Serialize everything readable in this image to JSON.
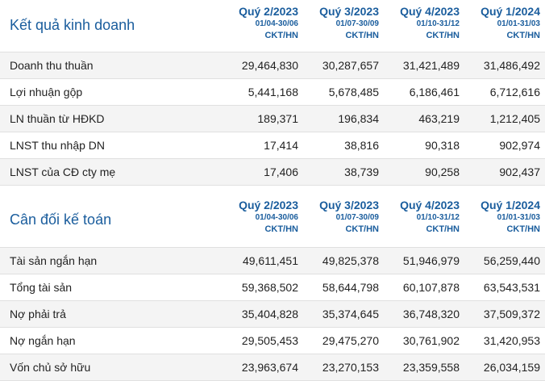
{
  "income": {
    "title": "Kết quả kinh doanh",
    "quarters": [
      {
        "label": "Quý 2/2023",
        "dates": "01/04-30/06",
        "audit": "CKT/HN"
      },
      {
        "label": "Quý 3/2023",
        "dates": "01/07-30/09",
        "audit": "CKT/HN"
      },
      {
        "label": "Quý 4/2023",
        "dates": "01/10-31/12",
        "audit": "CKT/HN"
      },
      {
        "label": "Quý 1/2024",
        "dates": "01/01-31/03",
        "audit": "CKT/HN"
      }
    ],
    "rows": [
      {
        "label": "Doanh thu thuần",
        "values": [
          "29,464,830",
          "30,287,657",
          "31,421,489",
          "31,486,492"
        ]
      },
      {
        "label": "Lợi nhuận gộp",
        "values": [
          "5,441,168",
          "5,678,485",
          "6,186,461",
          "6,712,616"
        ]
      },
      {
        "label": "LN thuần từ HĐKD",
        "values": [
          "189,371",
          "196,834",
          "463,219",
          "1,212,405"
        ]
      },
      {
        "label": "LNST thu nhập DN",
        "values": [
          "17,414",
          "38,816",
          "90,318",
          "902,974"
        ]
      },
      {
        "label": "LNST của CĐ cty mẹ",
        "values": [
          "17,406",
          "38,739",
          "90,258",
          "902,437"
        ]
      }
    ]
  },
  "balance": {
    "title": "Cân đối kế toán",
    "quarters": [
      {
        "label": "Quý 2/2023",
        "dates": "01/04-30/06",
        "audit": "CKT/HN"
      },
      {
        "label": "Quý 3/2023",
        "dates": "01/07-30/09",
        "audit": "CKT/HN"
      },
      {
        "label": "Quý 4/2023",
        "dates": "01/10-31/12",
        "audit": "CKT/HN"
      },
      {
        "label": "Quý 1/2024",
        "dates": "01/01-31/03",
        "audit": "CKT/HN"
      }
    ],
    "rows": [
      {
        "label": "Tài sản ngắn hạn",
        "values": [
          "49,611,451",
          "49,825,378",
          "51,946,979",
          "56,259,440"
        ]
      },
      {
        "label": "Tổng tài sản",
        "values": [
          "59,368,502",
          "58,644,798",
          "60,107,878",
          "63,543,531"
        ]
      },
      {
        "label": "Nợ phải trả",
        "values": [
          "35,404,828",
          "35,374,645",
          "36,748,320",
          "37,509,372"
        ]
      },
      {
        "label": "Nợ ngắn hạn",
        "values": [
          "29,505,453",
          "29,475,270",
          "30,761,902",
          "31,420,953"
        ]
      },
      {
        "label": "Vốn chủ sở hữu",
        "values": [
          "23,963,674",
          "23,270,153",
          "23,359,558",
          "26,034,159"
        ]
      }
    ]
  }
}
